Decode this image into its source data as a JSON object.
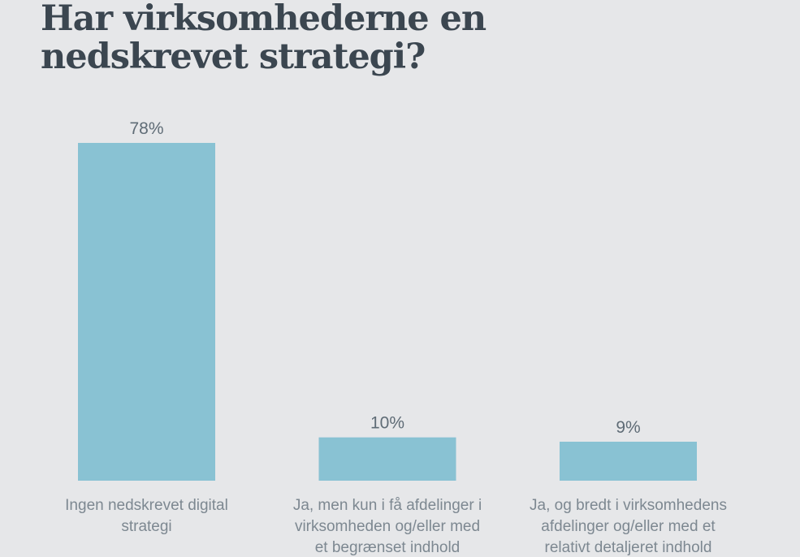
{
  "title": "Har virksomhederne en\nnedskrevet strategi?",
  "colors": {
    "background": "#e6e7e9",
    "bar": "#89c2d3",
    "title": "#3b4650",
    "value_label": "#5f6c76",
    "category_label": "#7d8891"
  },
  "chart_data": {
    "type": "bar",
    "title": "Har virksomhederne en nedskrevet strategi?",
    "categories": [
      "Ingen nedskrevet digital strategi",
      "Ja, men kun i få afdelinger i virksomheden og/eller med et begrænset indhold",
      "Ja, og bredt i virksomhedens afdelinger og/eller med et relativt detaljeret indhold"
    ],
    "category_lines": [
      [
        "Ingen nedskrevet digital",
        "strategi"
      ],
      [
        "Ja, men kun i få afdelinger i",
        "virksomheden og/eller med",
        "et begrænset indhold"
      ],
      [
        "Ja, og bredt i virksomhedens",
        "afdelinger og/eller med et",
        "relativt detaljeret indhold"
      ]
    ],
    "values": [
      78,
      10,
      9
    ],
    "value_labels": [
      "78%",
      "10%",
      "9%"
    ],
    "unit": "%",
    "xlabel": "",
    "ylabel": "",
    "ylim": [
      0,
      78
    ],
    "grid": false,
    "legend": "none"
  }
}
